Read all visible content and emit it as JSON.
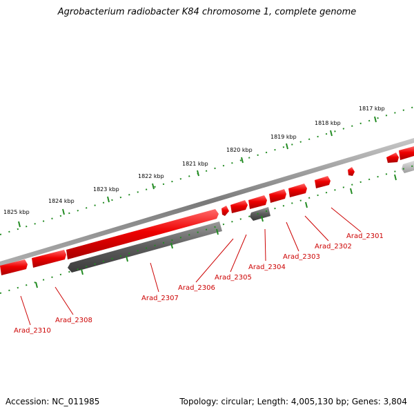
{
  "title": "Agrobacterium radiobacter K84 chromosome 1, complete genome",
  "footer": {
    "accession": "Accession: NC_011985",
    "topology": "Topology: circular; Length: 4,005,130 bp; Genes: 3,804"
  },
  "colors": {
    "forward_gene": "#e00000",
    "reverse_gene": "#606060",
    "tick": "#228b22",
    "gene_label": "#cc0000",
    "backbone": "#808080"
  },
  "ticks": [
    {
      "label": "1817 kbp"
    },
    {
      "label": "1818 kbp"
    },
    {
      "label": "1819 kbp"
    },
    {
      "label": "1820 kbp"
    },
    {
      "label": "1821 kbp"
    },
    {
      "label": "1822 kbp"
    },
    {
      "label": "1823 kbp"
    },
    {
      "label": "1824 kbp"
    },
    {
      "label": "1825 kbp"
    }
  ],
  "genes": [
    {
      "label": "Arad_2301"
    },
    {
      "label": "Arad_2302"
    },
    {
      "label": "Arad_2303"
    },
    {
      "label": "Arad_2304"
    },
    {
      "label": "Arad_2305"
    },
    {
      "label": "Arad_2306"
    },
    {
      "label": "Arad_2307"
    },
    {
      "label": "Arad_2308"
    },
    {
      "label": "Arad_2310"
    }
  ]
}
